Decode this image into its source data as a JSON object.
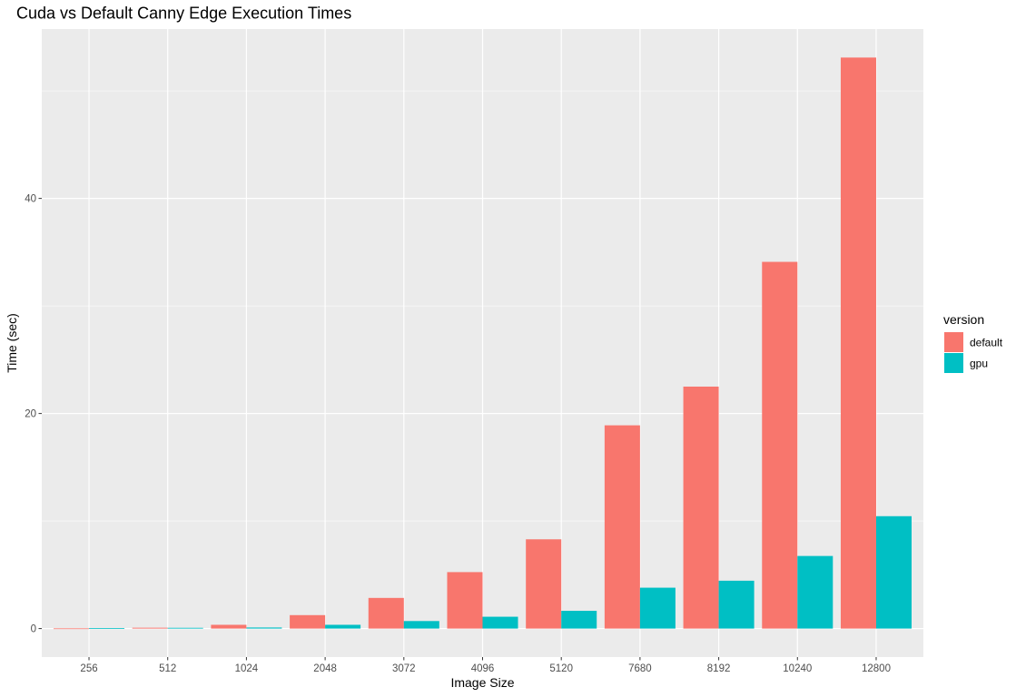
{
  "chart_data": {
    "type": "bar",
    "title": "Cuda vs Default Canny Edge Execution Times",
    "xlabel": "Image Size",
    "ylabel": "Time (sec)",
    "categories": [
      "256",
      "512",
      "1024",
      "2048",
      "3072",
      "4096",
      "5120",
      "7680",
      "8192",
      "10240",
      "12800"
    ],
    "series": [
      {
        "name": "default",
        "color": "#F8766D",
        "values": [
          0.02,
          0.08,
          0.35,
          1.25,
          2.85,
          5.25,
          8.3,
          18.9,
          22.5,
          34.1,
          53.1
        ]
      },
      {
        "name": "gpu",
        "color": "#00BFC4",
        "values": [
          0.05,
          0.07,
          0.1,
          0.35,
          0.7,
          1.1,
          1.65,
          3.8,
          4.45,
          6.75,
          10.45
        ]
      }
    ],
    "ylim": [
      -2.65,
      55.75
    ],
    "yticks": [
      0,
      20,
      40
    ],
    "grid": true,
    "legend": {
      "title": "version",
      "position": "right"
    }
  }
}
